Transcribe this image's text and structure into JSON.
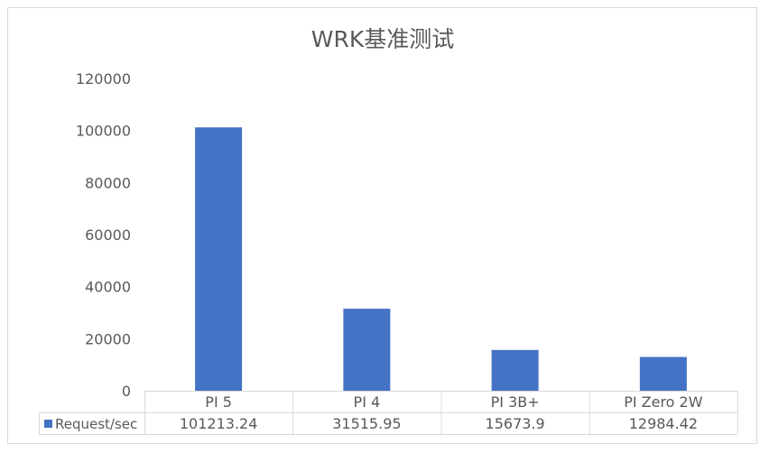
{
  "chart_data": {
    "type": "bar",
    "title": "WRK基准测试",
    "categories": [
      "PI 5",
      "PI 4",
      "PI 3B+",
      "PI Zero 2W"
    ],
    "series": [
      {
        "name": "Request/sec",
        "values": [
          101213.24,
          31515.95,
          15673.9,
          12984.42
        ],
        "value_labels": [
          "101213.24",
          "31515.95",
          "15673.9",
          "12984.42"
        ],
        "color": "#4472C4"
      }
    ],
    "ylim": [
      0,
      120000
    ],
    "yticks": [
      0,
      20000,
      40000,
      60000,
      80000,
      100000,
      120000
    ],
    "ytick_labels": [
      "0",
      "20000",
      "40000",
      "60000",
      "80000",
      "100000",
      "120000"
    ],
    "grid": false,
    "data_table": true,
    "legend": "data-table",
    "colors": {
      "bar": "#4472C4",
      "text": "#595959",
      "title": "#595959",
      "table_border": "#D9D9D9",
      "frame_border": "#D9D9D9"
    }
  }
}
